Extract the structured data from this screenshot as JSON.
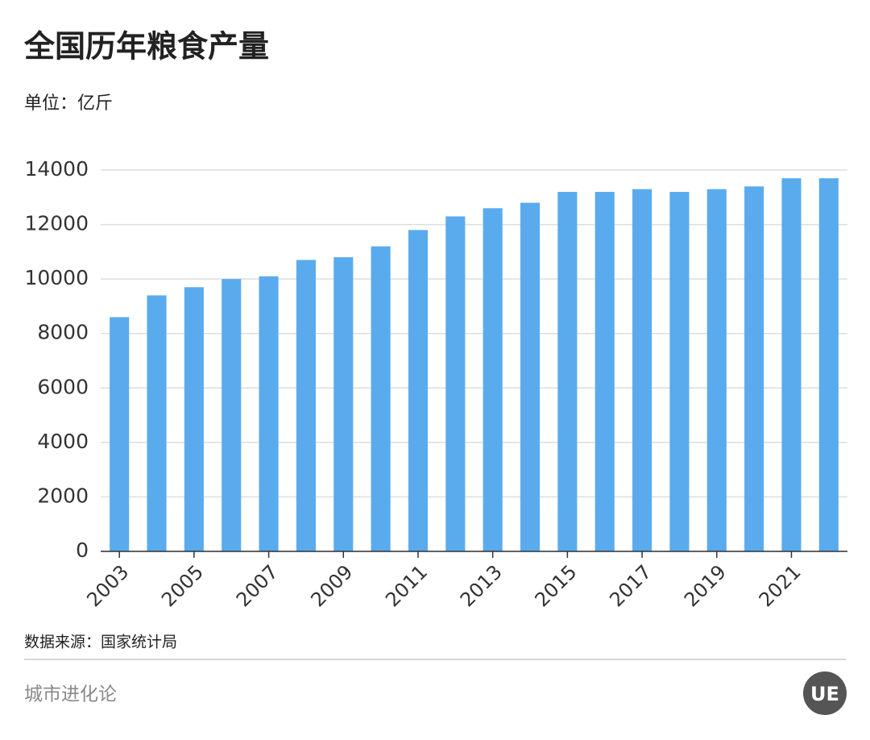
{
  "chart_data": {
    "type": "bar",
    "title": "全国历年粮食产量",
    "unit_label": "单位：亿斤",
    "categories": [
      "2003",
      null,
      "2005",
      null,
      "2007",
      null,
      "2009",
      null,
      "2011",
      null,
      "2013",
      null,
      "2015",
      null,
      "2017",
      null,
      "2019",
      null,
      "2021",
      null
    ],
    "values": [
      8600,
      9400,
      9700,
      10000,
      10100,
      10700,
      10800,
      11200,
      11800,
      12300,
      12600,
      12800,
      13200,
      13200,
      13300,
      13200,
      13300,
      13400,
      13700,
      13700
    ],
    "color": "#5aabee",
    "ylim": [
      0,
      14000
    ],
    "yticks": [
      0,
      2000,
      4000,
      6000,
      8000,
      10000,
      12000,
      14000
    ],
    "grid": true,
    "source": "数据来源：国家统计局",
    "footer": "城市进化论",
    "logo_text": "UE"
  }
}
